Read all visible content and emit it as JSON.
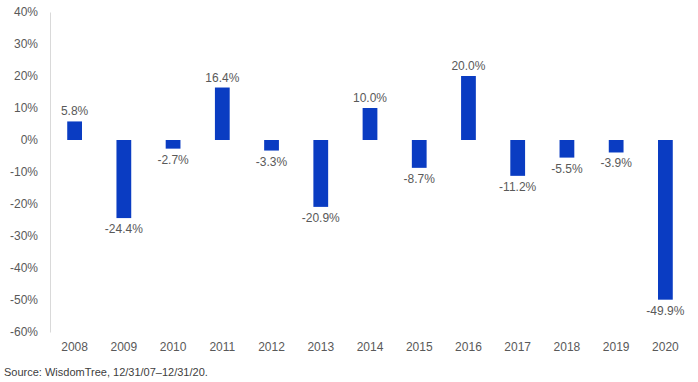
{
  "chart_data": {
    "type": "bar",
    "categories": [
      "2008",
      "2009",
      "2010",
      "2011",
      "2012",
      "2013",
      "2014",
      "2015",
      "2016",
      "2017",
      "2018",
      "2019",
      "2020"
    ],
    "values": [
      5.8,
      -24.4,
      -2.7,
      16.4,
      -3.3,
      -20.9,
      10.0,
      -8.7,
      20.0,
      -11.2,
      -5.5,
      -3.9,
      -49.9
    ],
    "value_labels": [
      "5.8%",
      "-24.4%",
      "-2.7%",
      "16.4%",
      "-3.3%",
      "-20.9%",
      "10.0%",
      "-8.7%",
      "20.0%",
      "-11.2%",
      "-5.5%",
      "-3.9%",
      "-49.9%"
    ],
    "data_labels": true,
    "color": "#0a3cc2",
    "ylim": [
      -60,
      40
    ],
    "yticks": [
      {
        "value": -60,
        "label": "-60%"
      },
      {
        "value": -50,
        "label": "-50%"
      },
      {
        "value": -40,
        "label": "-40%"
      },
      {
        "value": -30,
        "label": "-30%"
      },
      {
        "value": -20,
        "label": "-20%"
      },
      {
        "value": -10,
        "label": "-10%"
      },
      {
        "value": 0,
        "label": "0%"
      },
      {
        "value": 10,
        "label": "10%"
      },
      {
        "value": 20,
        "label": "20%"
      },
      {
        "value": 30,
        "label": "30%"
      },
      {
        "value": 40,
        "label": "40%"
      }
    ],
    "grid": false,
    "source": "Source: WisdomTree, 12/31/07–12/31/20."
  }
}
